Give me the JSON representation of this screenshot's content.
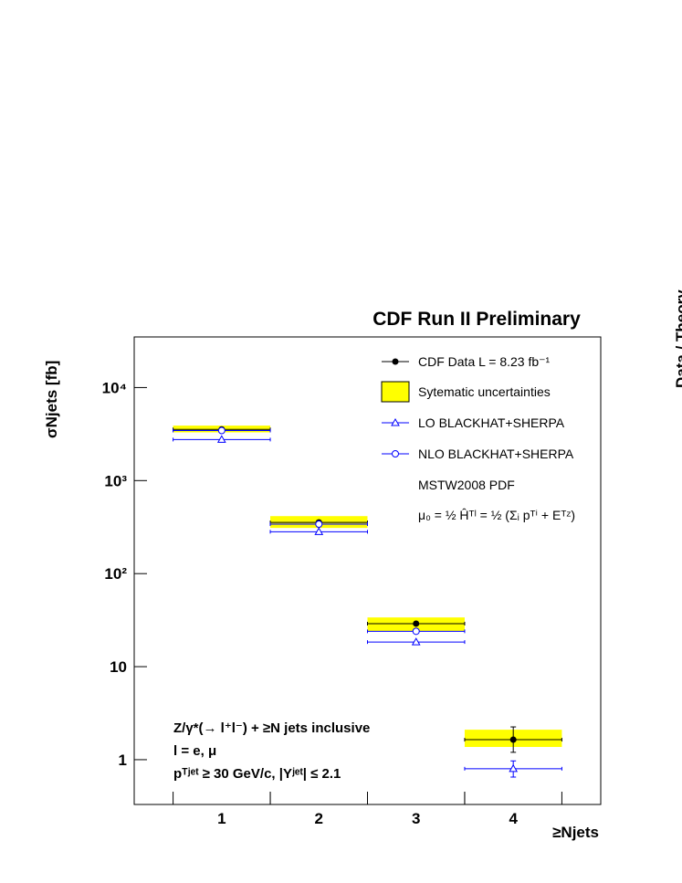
{
  "chart_data": {
    "type": "errorbar",
    "title": "CDF Run II Preliminary",
    "x_label": "≥Njets",
    "y_label": "σNjets  [fb]",
    "right_panel_label": "Data / Theory",
    "x": [
      1,
      2,
      3,
      4
    ],
    "xlim": [
      0.1,
      4.9
    ],
    "xticks": [
      1,
      2,
      3,
      4
    ],
    "ylim": [
      0.33,
      35000
    ],
    "yticks": [
      1,
      10,
      {
        "value": 100,
        "label": "10²"
      },
      {
        "value": 1000,
        "label": "10³"
      },
      {
        "value": 10000,
        "label": "10⁴"
      }
    ],
    "log_y": true,
    "band_name": "Sytematic uncertainties",
    "band_color": "#ffff00",
    "band_low": [
      3300,
      310,
      24,
      1.37
    ],
    "band_high": [
      3900,
      415,
      33.8,
      2.1
    ],
    "series": [
      {
        "name": "CDF Data  L =  8.23 fb⁻¹",
        "color": "#000000",
        "marker": "filled-circle",
        "values": [
          3550,
          355,
          29,
          1.64
        ],
        "error_low": [
          null,
          null,
          null,
          1.2
        ],
        "error_high": [
          null,
          null,
          null,
          2.25
        ]
      },
      {
        "name": "LO BLACKHAT+SHERPA",
        "color": "#0000ff",
        "marker": "open-triangle",
        "values": [
          2760,
          282,
          18.4,
          0.8
        ],
        "error_low": [
          null,
          null,
          null,
          0.65
        ],
        "error_high": [
          null,
          null,
          null,
          0.97
        ]
      },
      {
        "name": "NLO BLACKHAT+SHERPA",
        "color": "#0000ff",
        "marker": "open-circle",
        "values": [
          3450,
          340,
          24,
          null
        ],
        "error_low": [
          null,
          null,
          null,
          null
        ],
        "error_high": [
          null,
          null,
          null,
          null
        ]
      }
    ],
    "legend_notes": [
      "MSTW2008 PDF",
      "μ₀ = ½ Ĥᵀˡ = ½ (Σᵢ pᵀⁱ + Eᵀᶻ)"
    ],
    "annotations": [
      "Z/γ*(→ l⁺l⁻) + ≥N jets inclusive",
      "l = e, μ",
      "pᵀʲᵉᵗ ≥ 30 GeV/c, |Yʲᵉᵗ| ≤ 2.1"
    ]
  }
}
